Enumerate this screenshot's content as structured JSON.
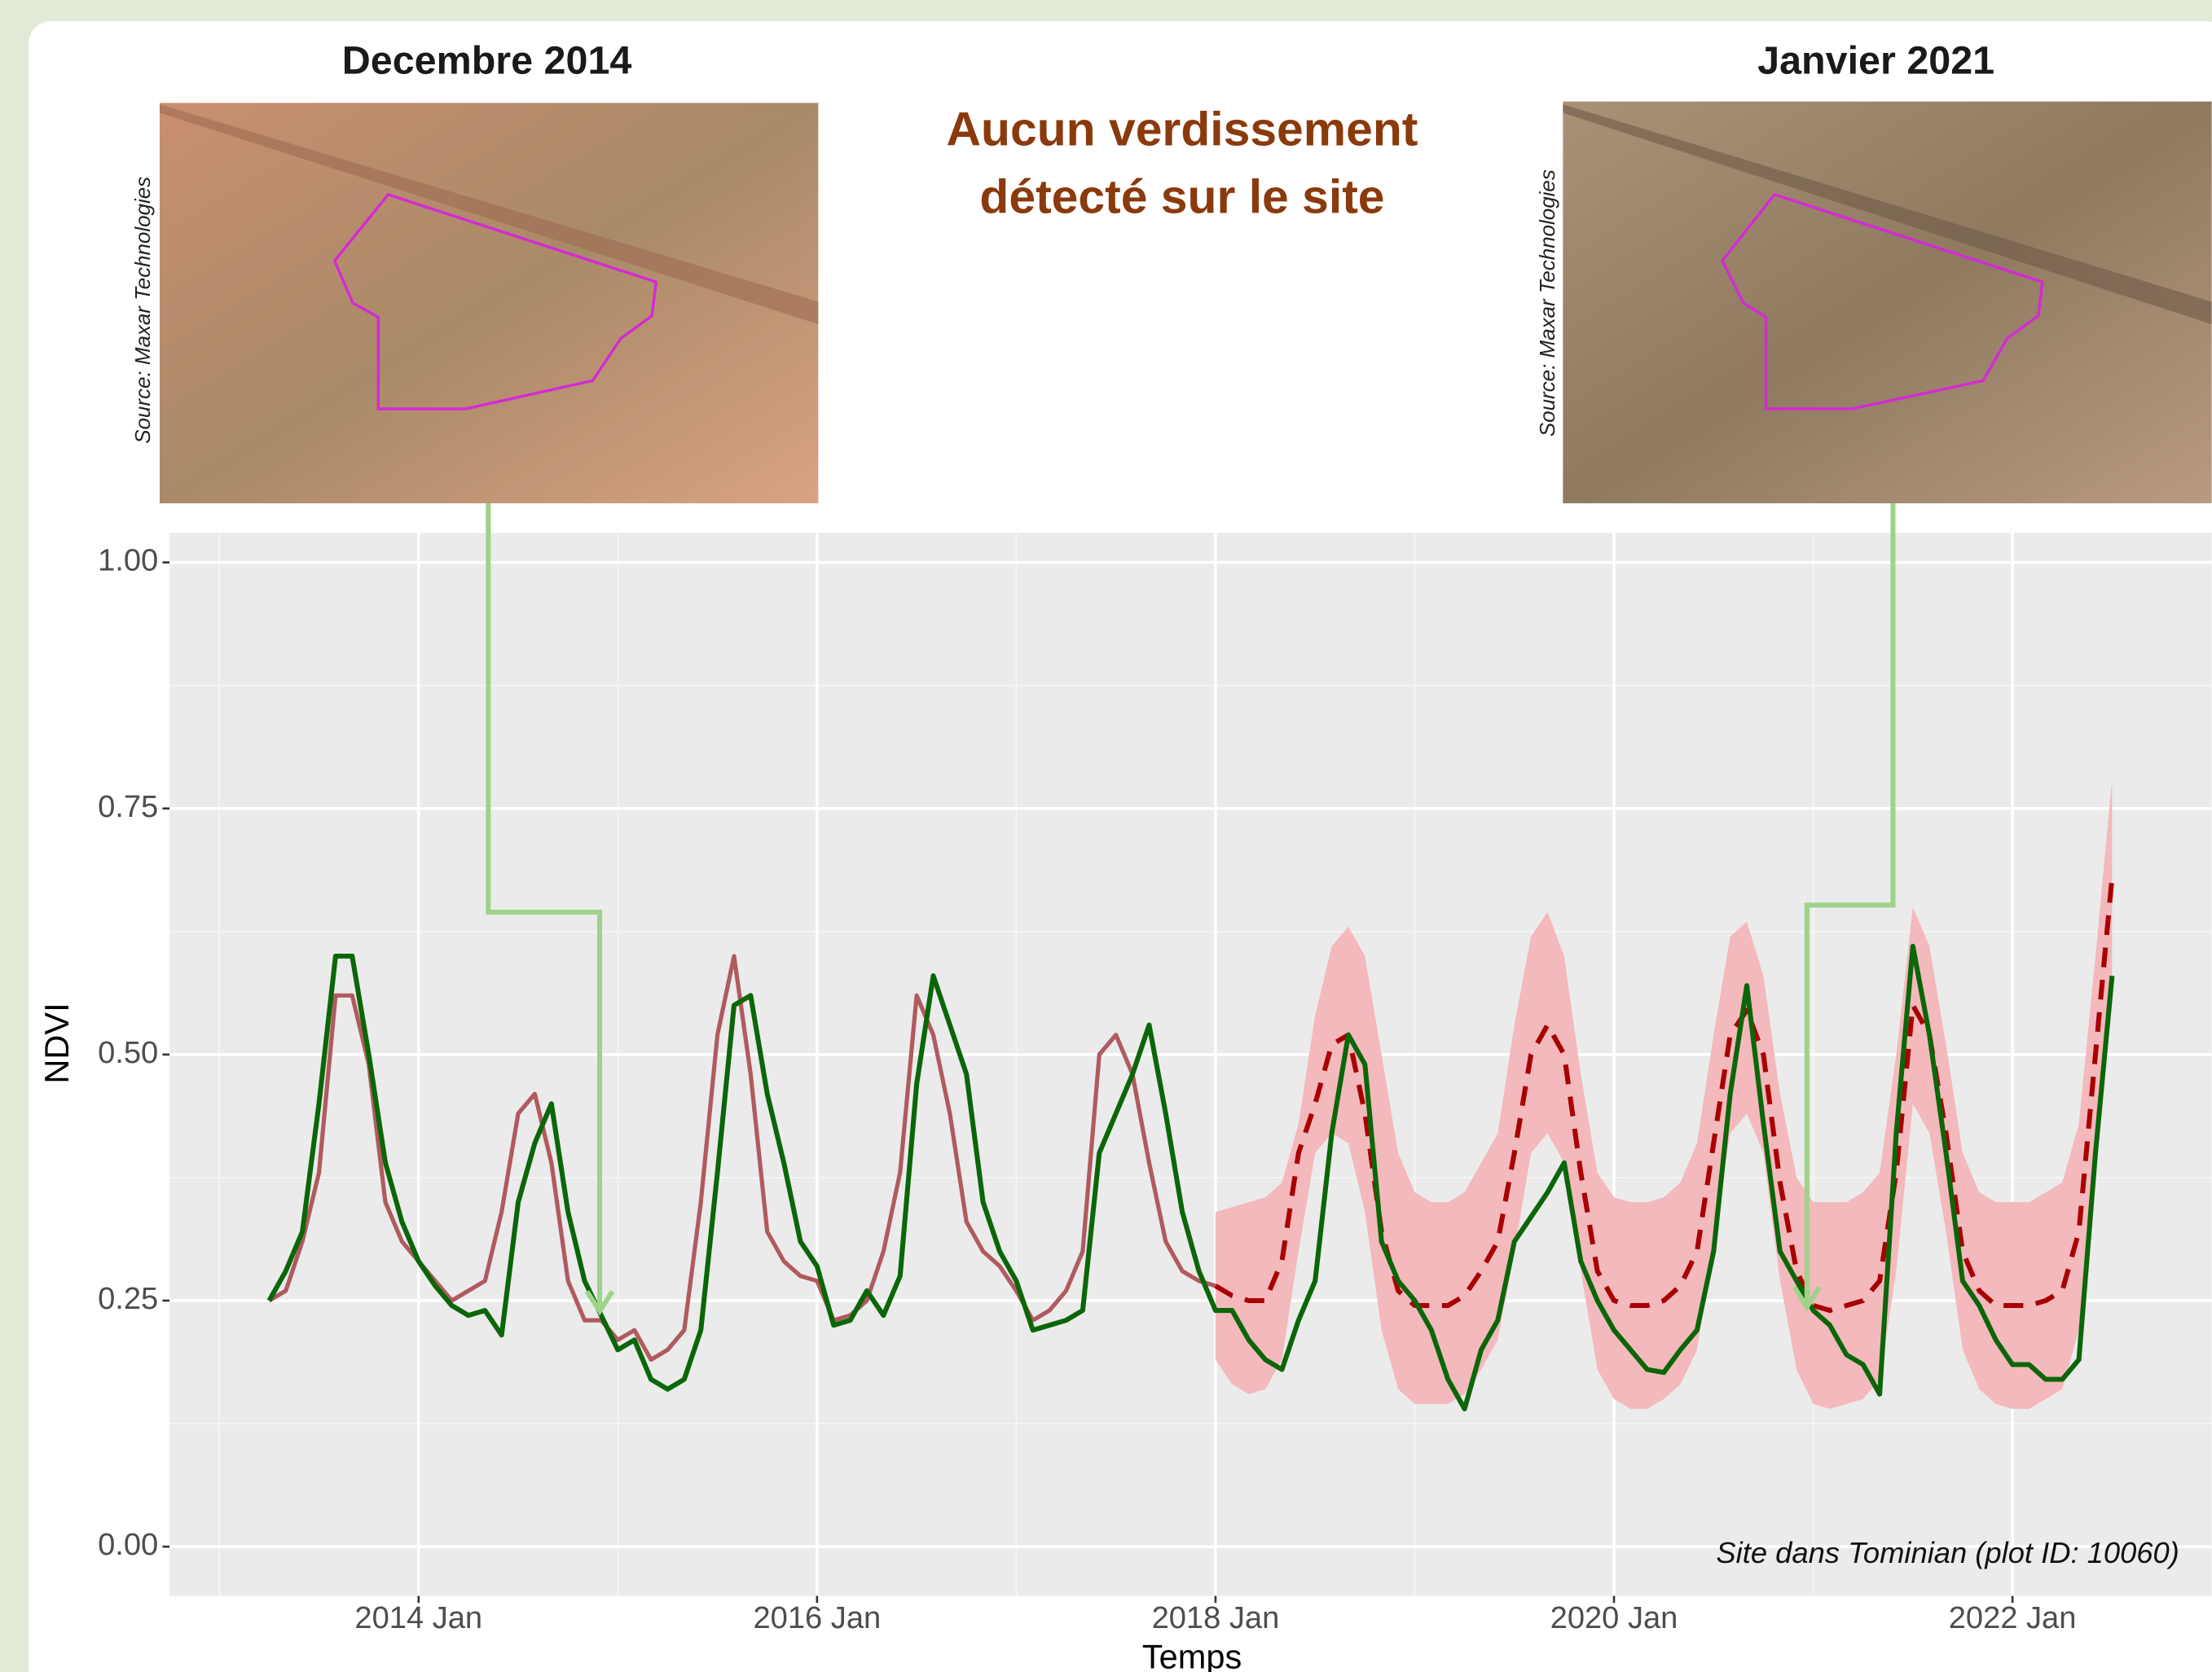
{
  "header": {
    "left_title": "Decembre 2014",
    "right_title": "Janvier 2021",
    "message": [
      "Aucun verdissement",
      "détecté sur le site"
    ],
    "left_source": "Source: Maxar Technologies",
    "right_source": "Source: Maxar Technologies"
  },
  "chart_data": {
    "type": "line",
    "annotation": "Site dans Tominian (plot ID: 10060)",
    "x_label": "Temps",
    "y_label": "NDVI",
    "xlim": [
      "2012-10",
      "2023-01"
    ],
    "ylim": [
      -0.05,
      1.03
    ],
    "xticks": [
      {
        "value": "2014-01",
        "label": "2014 Jan"
      },
      {
        "value": "2016-01",
        "label": "2016 Jan"
      },
      {
        "value": "2018-01",
        "label": "2018 Jan"
      },
      {
        "value": "2020-01",
        "label": "2020 Jan"
      },
      {
        "value": "2022-01",
        "label": "2022 Jan"
      }
    ],
    "yticks": [
      {
        "value": 0,
        "label": "0.00"
      },
      {
        "value": 0.25,
        "label": "0.25"
      },
      {
        "value": 0.5,
        "label": "0.50"
      },
      {
        "value": 0.75,
        "label": "0.75"
      },
      {
        "value": 1,
        "label": "1.00"
      }
    ],
    "grid": true,
    "x": [
      "2013-04",
      "2013-05",
      "2013-06",
      "2013-07",
      "2013-08",
      "2013-09",
      "2013-10",
      "2013-11",
      "2013-12",
      "2014-01",
      "2014-02",
      "2014-03",
      "2014-04",
      "2014-05",
      "2014-06",
      "2014-07",
      "2014-08",
      "2014-09",
      "2014-10",
      "2014-11",
      "2014-12",
      "2015-01",
      "2015-02",
      "2015-03",
      "2015-04",
      "2015-05",
      "2015-06",
      "2015-07",
      "2015-08",
      "2015-09",
      "2015-10",
      "2015-11",
      "2015-12",
      "2016-01",
      "2016-02",
      "2016-03",
      "2016-04",
      "2016-05",
      "2016-06",
      "2016-07",
      "2016-08",
      "2016-09",
      "2016-10",
      "2016-11",
      "2016-12",
      "2017-01",
      "2017-02",
      "2017-03",
      "2017-04",
      "2017-05",
      "2017-06",
      "2017-07",
      "2017-08",
      "2017-09",
      "2017-10",
      "2017-11",
      "2017-12",
      "2018-01",
      "2018-02",
      "2018-03",
      "2018-04",
      "2018-05",
      "2018-06",
      "2018-07",
      "2018-08",
      "2018-09",
      "2018-10",
      "2018-11",
      "2018-12",
      "2019-01",
      "2019-02",
      "2019-03",
      "2019-04",
      "2019-05",
      "2019-06",
      "2019-07",
      "2019-08",
      "2019-09",
      "2019-10",
      "2019-11",
      "2019-12",
      "2020-01",
      "2020-02",
      "2020-03",
      "2020-04",
      "2020-05",
      "2020-06",
      "2020-07",
      "2020-08",
      "2020-09",
      "2020-10",
      "2020-11",
      "2020-12",
      "2021-01",
      "2021-02",
      "2021-03",
      "2021-04",
      "2021-05",
      "2021-06",
      "2021-07",
      "2021-08",
      "2021-09",
      "2021-10",
      "2021-11",
      "2021-12",
      "2022-01",
      "2022-02",
      "2022-03",
      "2022-04",
      "2022-05",
      "2022-06",
      "2022-07"
    ],
    "band": {
      "color": "#f4b9bd",
      "lower": [
        null,
        null,
        null,
        null,
        null,
        null,
        null,
        null,
        null,
        null,
        null,
        null,
        null,
        null,
        null,
        null,
        null,
        null,
        null,
        null,
        null,
        null,
        null,
        null,
        null,
        null,
        null,
        null,
        null,
        null,
        null,
        null,
        null,
        null,
        null,
        null,
        null,
        null,
        null,
        null,
        null,
        null,
        null,
        null,
        null,
        null,
        null,
        null,
        null,
        null,
        null,
        null,
        null,
        null,
        null,
        null,
        null,
        0.19,
        0.165,
        0.155,
        0.16,
        0.19,
        0.3,
        0.4,
        0.42,
        0.41,
        0.34,
        0.22,
        0.16,
        0.145,
        0.145,
        0.145,
        0.155,
        0.18,
        0.21,
        0.3,
        0.4,
        0.42,
        0.39,
        0.28,
        0.18,
        0.15,
        0.14,
        0.14,
        0.15,
        0.165,
        0.2,
        0.31,
        0.42,
        0.44,
        0.4,
        0.27,
        0.18,
        0.145,
        0.14,
        0.145,
        0.15,
        0.17,
        0.28,
        0.45,
        0.42,
        0.32,
        0.2,
        0.16,
        0.145,
        0.14,
        0.14,
        0.15,
        0.16,
        0.22,
        0.4,
        0.58
      ],
      "upper": [
        null,
        null,
        null,
        null,
        null,
        null,
        null,
        null,
        null,
        null,
        null,
        null,
        null,
        null,
        null,
        null,
        null,
        null,
        null,
        null,
        null,
        null,
        null,
        null,
        null,
        null,
        null,
        null,
        null,
        null,
        null,
        null,
        null,
        null,
        null,
        null,
        null,
        null,
        null,
        null,
        null,
        null,
        null,
        null,
        null,
        null,
        null,
        null,
        null,
        null,
        null,
        null,
        null,
        null,
        null,
        null,
        null,
        0.34,
        0.345,
        0.35,
        0.355,
        0.37,
        0.43,
        0.54,
        0.61,
        0.63,
        0.6,
        0.5,
        0.4,
        0.36,
        0.35,
        0.35,
        0.36,
        0.39,
        0.42,
        0.53,
        0.62,
        0.645,
        0.6,
        0.48,
        0.38,
        0.355,
        0.35,
        0.35,
        0.355,
        0.37,
        0.41,
        0.52,
        0.62,
        0.635,
        0.58,
        0.46,
        0.375,
        0.35,
        0.35,
        0.35,
        0.36,
        0.38,
        0.5,
        0.65,
        0.61,
        0.51,
        0.4,
        0.36,
        0.35,
        0.35,
        0.35,
        0.36,
        0.37,
        0.43,
        0.6,
        0.78
      ]
    },
    "series": [
      {
        "color": "#b05a5f",
        "dash": false,
        "width": 3,
        "values": [
          0.25,
          0.26,
          0.31,
          0.38,
          0.56,
          0.56,
          0.49,
          0.35,
          0.31,
          0.29,
          0.27,
          0.25,
          0.26,
          0.27,
          0.34,
          0.44,
          0.46,
          0.39,
          0.27,
          0.23,
          0.23,
          0.21,
          0.22,
          0.19,
          0.2,
          0.22,
          0.35,
          0.52,
          0.6,
          0.48,
          0.32,
          0.29,
          0.275,
          0.27,
          0.23,
          0.235,
          0.25,
          0.3,
          0.38,
          0.56,
          0.52,
          0.44,
          0.33,
          0.3,
          0.285,
          0.26,
          0.23,
          0.24,
          0.26,
          0.3,
          0.5,
          0.52,
          0.48,
          0.39,
          0.31,
          0.28,
          0.27,
          0.265,
          null,
          null,
          null,
          null,
          null,
          null,
          null,
          null,
          null,
          null,
          null,
          null,
          null,
          null,
          null,
          null,
          null,
          null,
          null,
          null,
          null,
          null,
          null,
          null,
          null,
          null,
          null,
          null,
          null,
          null,
          null,
          null,
          null,
          null,
          null,
          null,
          null,
          null,
          null,
          null,
          null,
          null,
          null,
          null,
          null,
          null,
          null,
          null,
          null,
          null,
          null,
          null,
          null,
          null
        ]
      },
      {
        "color": "#a80000",
        "dash": true,
        "width": 3.5,
        "values": [
          null,
          null,
          null,
          null,
          null,
          null,
          null,
          null,
          null,
          null,
          null,
          null,
          null,
          null,
          null,
          null,
          null,
          null,
          null,
          null,
          null,
          null,
          null,
          null,
          null,
          null,
          null,
          null,
          null,
          null,
          null,
          null,
          null,
          null,
          null,
          null,
          null,
          null,
          null,
          null,
          null,
          null,
          null,
          null,
          null,
          null,
          null,
          null,
          null,
          null,
          null,
          null,
          null,
          null,
          null,
          null,
          null,
          0.265,
          0.255,
          0.25,
          0.25,
          0.29,
          0.4,
          0.45,
          0.51,
          0.52,
          0.44,
          0.32,
          0.26,
          0.245,
          0.245,
          0.245,
          0.255,
          0.28,
          0.31,
          0.4,
          0.5,
          0.53,
          0.5,
          0.38,
          0.28,
          0.25,
          0.245,
          0.245,
          0.25,
          0.265,
          0.3,
          0.41,
          0.52,
          0.545,
          0.5,
          0.37,
          0.28,
          0.245,
          0.24,
          0.245,
          0.25,
          0.27,
          0.38,
          0.55,
          0.52,
          0.42,
          0.3,
          0.26,
          0.245,
          0.245,
          0.245,
          0.25,
          0.26,
          0.32,
          0.5,
          0.68
        ]
      },
      {
        "color": "#0b6609",
        "dash": false,
        "width": 3.5,
        "values": [
          0.25,
          0.28,
          0.32,
          0.45,
          0.6,
          0.6,
          0.5,
          0.39,
          0.33,
          0.29,
          0.265,
          0.245,
          0.235,
          0.24,
          0.215,
          0.35,
          0.41,
          0.45,
          0.34,
          0.27,
          0.235,
          0.2,
          0.21,
          0.17,
          0.16,
          0.17,
          0.22,
          0.38,
          0.55,
          0.56,
          0.46,
          0.39,
          0.31,
          0.285,
          0.225,
          0.23,
          0.26,
          0.235,
          0.275,
          0.47,
          0.58,
          0.53,
          0.48,
          0.35,
          0.3,
          0.27,
          0.22,
          0.225,
          0.23,
          0.24,
          0.4,
          0.44,
          0.48,
          0.53,
          0.44,
          0.34,
          0.28,
          0.24,
          0.24,
          0.21,
          0.19,
          0.18,
          0.23,
          0.27,
          0.42,
          0.52,
          0.49,
          0.31,
          0.27,
          0.25,
          0.22,
          0.17,
          0.14,
          0.2,
          0.23,
          0.31,
          0.335,
          0.36,
          0.39,
          0.29,
          0.25,
          0.22,
          0.2,
          0.18,
          0.177,
          0.2,
          0.22,
          0.3,
          0.46,
          0.57,
          0.43,
          0.3,
          0.27,
          0.24,
          0.225,
          0.195,
          0.185,
          0.155,
          0.42,
          0.61,
          0.52,
          0.4,
          0.27,
          0.245,
          0.21,
          0.185,
          0.185,
          0.17,
          0.17,
          0.19,
          0.4,
          0.58
        ]
      }
    ]
  }
}
